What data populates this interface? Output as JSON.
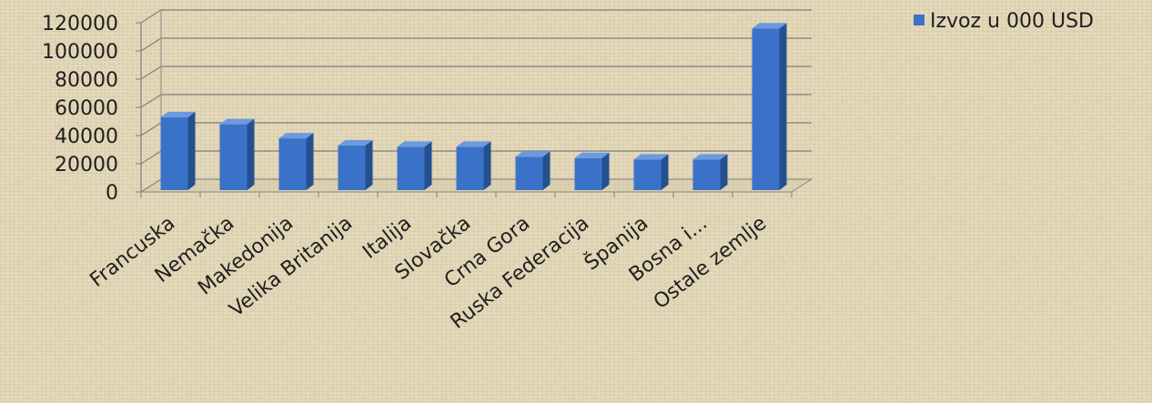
{
  "chart_data": {
    "type": "bar",
    "title": "",
    "xlabel": "",
    "ylabel": "",
    "categories": [
      "Francuska",
      "Nemačka",
      "Makedonija",
      "Velika Britanija",
      "Italija",
      "Slovačka",
      "Crna Gora",
      "Ruska Federacija",
      "Španija",
      "Bosna i...",
      "Ostale zemlje"
    ],
    "series": [
      {
        "name": "Izvoz u 000 USD",
        "values": [
          53000,
          48000,
          38000,
          33000,
          32000,
          32000,
          25000,
          24000,
          23000,
          23000,
          116000
        ]
      }
    ],
    "ylim": [
      0,
      120000
    ],
    "yticks": [
      0,
      20000,
      40000,
      60000,
      80000,
      100000,
      120000
    ],
    "grid": true,
    "legend_position": "top-right",
    "bar_color": "#3b72c9",
    "bar_side_color": "#24508f",
    "bar_top_color": "#6b9ae0"
  }
}
